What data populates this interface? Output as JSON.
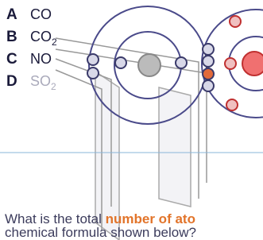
{
  "options": [
    {
      "letter": "A",
      "formula": "CO"
    },
    {
      "letter": "B",
      "formula": "CO",
      "subscript": "2"
    },
    {
      "letter": "C",
      "formula": "NO"
    },
    {
      "letter": "D",
      "formula": "SO",
      "subscript": "2"
    }
  ],
  "question": {
    "line1_start": "What is the total ",
    "line1_highlight": "number of ato",
    "line2": "chemical formula shown below?"
  }
}
